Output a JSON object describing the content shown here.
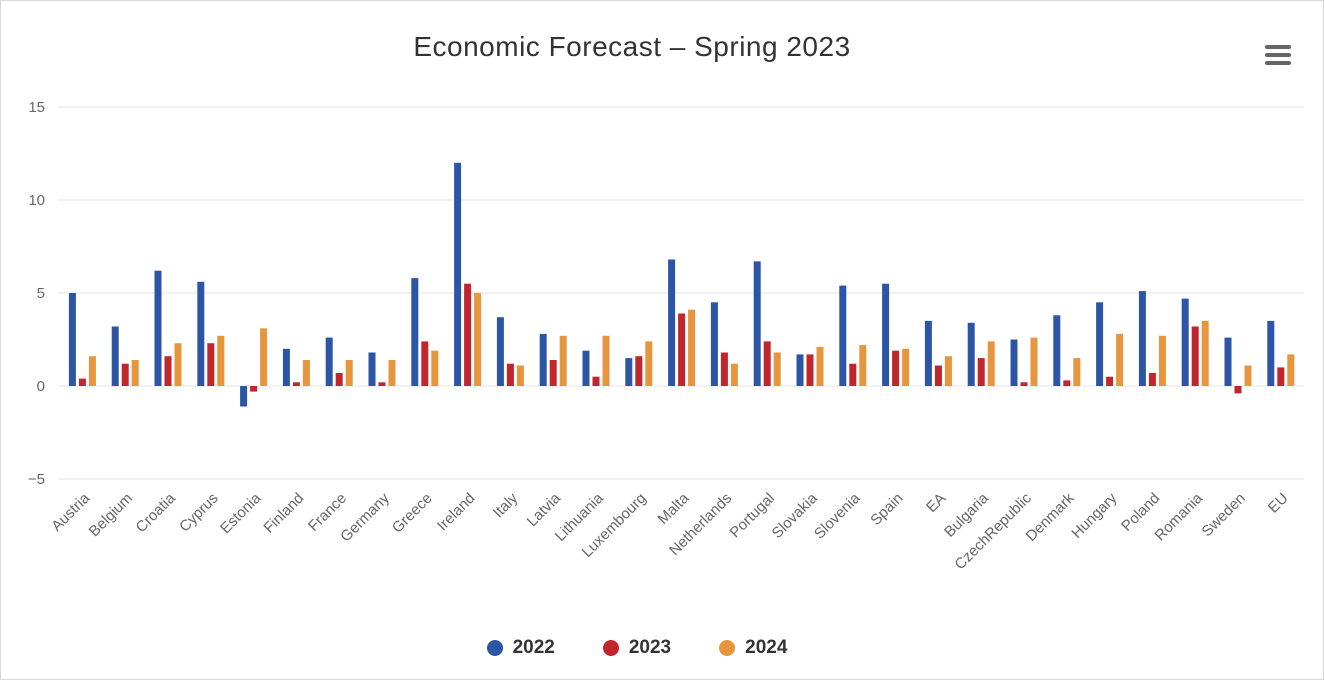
{
  "header": {
    "title": "Economic Forecast – Spring 2023"
  },
  "menu": {
    "name": "context-menu",
    "icon": "hamburger-menu-icon"
  },
  "chart_data": {
    "type": "bar",
    "title": "Economic Forecast – Spring 2023",
    "xlabel": "",
    "ylabel": "",
    "grid": true,
    "legend_position": "bottom",
    "xlabel_rotation": -45,
    "yticks": [
      -5,
      0,
      5,
      10,
      15
    ],
    "ylim": [
      -5.9,
      16.1
    ],
    "categories": [
      "Austria",
      "Belgium",
      "Croatia",
      "Cyprus",
      "Estonia",
      "Finland",
      "France",
      "Germany",
      "Greece",
      "Ireland",
      "Italy",
      "Latvia",
      "Lithuania",
      "Luxembourg",
      "Malta",
      "Netherlands",
      "Portugal",
      "Slovakia",
      "Slovenia",
      "Spain",
      "EA",
      "Bulgaria",
      "CzechRepublic",
      "Denmark",
      "Hungary",
      "Poland",
      "Romania",
      "Sweden",
      "EU"
    ],
    "series": [
      {
        "name": "2022",
        "color": "#2c56a5",
        "values": [
          5.0,
          3.2,
          6.2,
          5.6,
          -1.1,
          2.0,
          2.6,
          1.8,
          5.8,
          12.0,
          3.7,
          2.8,
          1.9,
          1.5,
          6.8,
          4.5,
          6.7,
          1.7,
          5.4,
          5.5,
          3.5,
          3.4,
          2.5,
          3.8,
          4.5,
          5.1,
          4.7,
          2.6,
          3.5
        ]
      },
      {
        "name": "2023",
        "color": "#c2262d",
        "values": [
          0.4,
          1.2,
          1.6,
          2.3,
          -0.3,
          0.2,
          0.7,
          0.2,
          2.4,
          5.5,
          1.2,
          1.4,
          0.5,
          1.6,
          3.9,
          1.8,
          2.4,
          1.7,
          1.2,
          1.9,
          1.1,
          1.5,
          0.2,
          0.3,
          0.5,
          0.7,
          3.2,
          -0.4,
          1.0
        ]
      },
      {
        "name": "2024",
        "color": "#e6963c",
        "values": [
          1.6,
          1.4,
          2.3,
          2.7,
          3.1,
          1.4,
          1.4,
          1.4,
          1.9,
          5.0,
          1.1,
          2.7,
          2.7,
          2.4,
          4.1,
          1.2,
          1.8,
          2.1,
          2.2,
          2.0,
          1.6,
          2.4,
          2.6,
          1.5,
          2.8,
          2.7,
          3.5,
          1.1,
          1.7
        ]
      }
    ],
    "colors": {
      "title_text": "#333333",
      "axis_labels": "#666666",
      "gridline": "#e6e6e6",
      "legend_text": "#333333",
      "border": "#d9d9d9"
    }
  }
}
